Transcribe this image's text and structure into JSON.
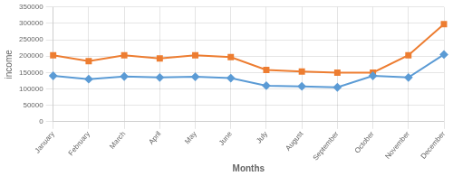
{
  "chart_data": {
    "type": "line",
    "categories": [
      "January",
      "February",
      "March",
      "April",
      "May",
      "June",
      "July",
      "August",
      "September",
      "October",
      "November",
      "December"
    ],
    "series": [
      {
        "color": "#5B9BD5",
        "marker": "diamond",
        "values": [
          140000,
          130000,
          138000,
          135000,
          137000,
          133000,
          110000,
          108000,
          105000,
          140000,
          135000,
          205000
        ]
      },
      {
        "color": "#ED7D31",
        "marker": "square",
        "values": [
          203000,
          185000,
          203000,
          193000,
          203000,
          197000,
          158000,
          153000,
          150000,
          150000,
          203000,
          298000
        ]
      }
    ],
    "x_label": "Months",
    "y_label": "income",
    "ylim": [
      0,
      350000
    ],
    "yticks": [
      0,
      50000,
      100000,
      150000,
      200000,
      250000,
      300000,
      350000
    ],
    "grid": true
  }
}
